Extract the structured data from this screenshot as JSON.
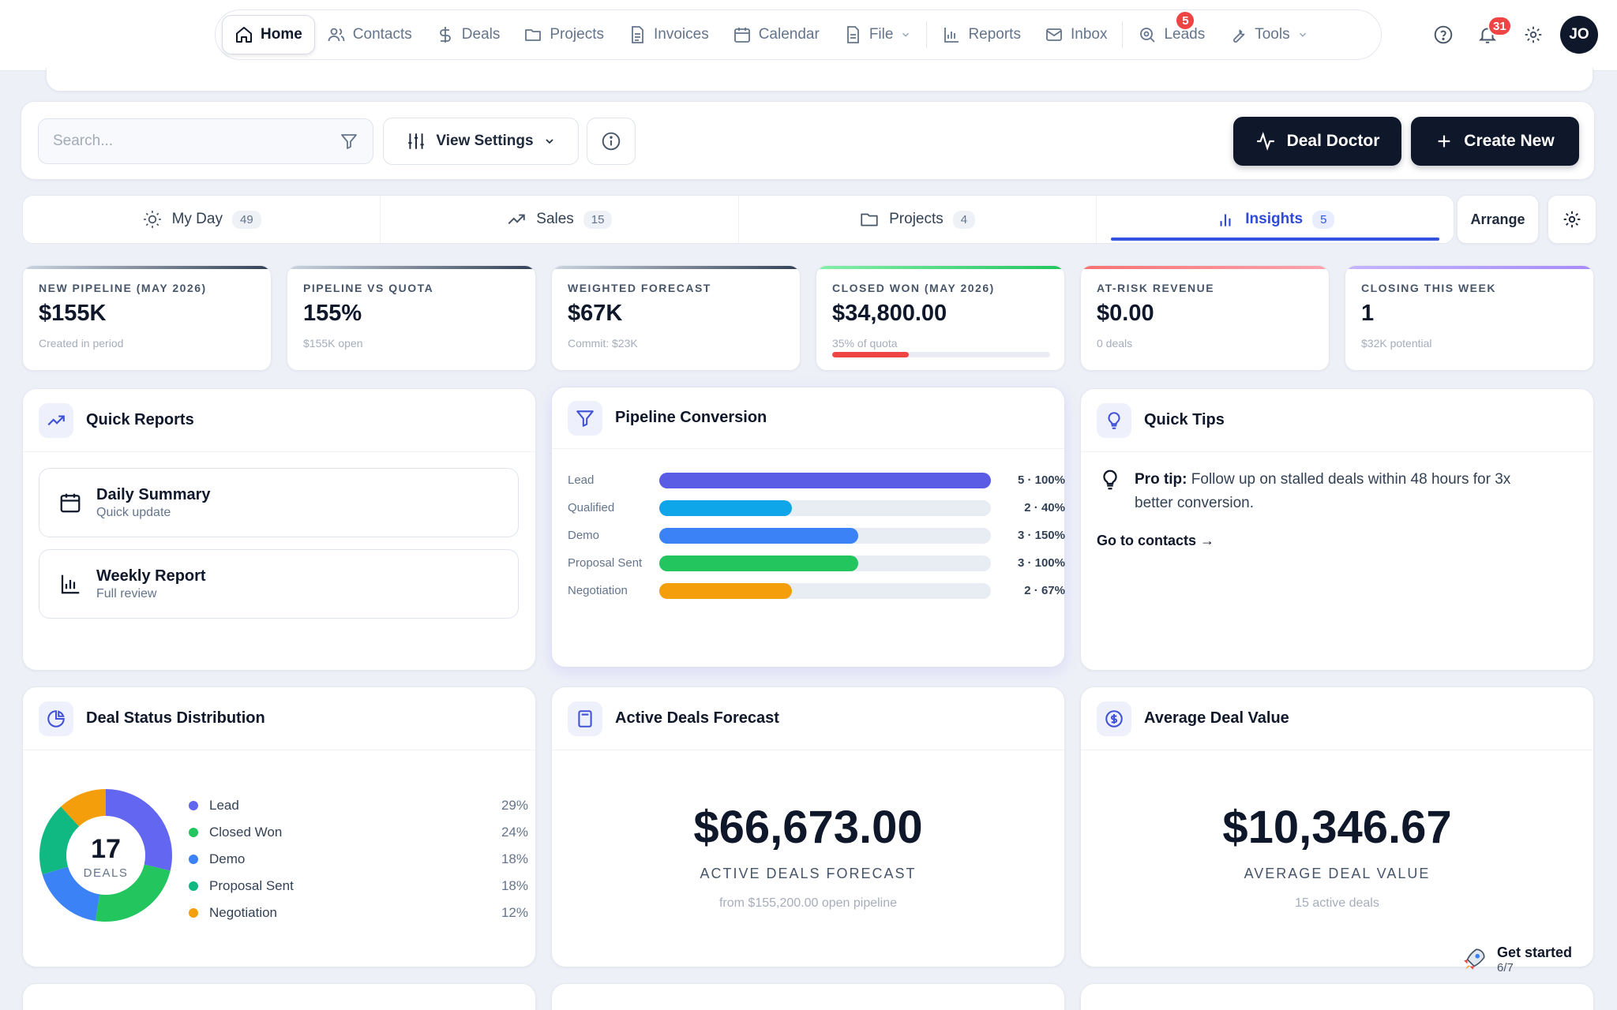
{
  "nav": {
    "items": [
      {
        "label": "Home",
        "icon": "home-icon"
      },
      {
        "label": "Contacts",
        "icon": "users-icon"
      },
      {
        "label": "Deals",
        "icon": "dollar-icon"
      },
      {
        "label": "Projects",
        "icon": "folder-icon"
      },
      {
        "label": "Invoices",
        "icon": "document-icon"
      },
      {
        "label": "Calendar",
        "icon": "calendar-icon"
      },
      {
        "label": "File",
        "icon": "file-icon"
      },
      {
        "label": "Reports",
        "icon": "bar-chart-icon"
      },
      {
        "label": "Inbox",
        "icon": "mail-icon"
      },
      {
        "label": "Leads",
        "icon": "search-target-icon",
        "badge": "5"
      },
      {
        "label": "Tools",
        "icon": "wrench-icon"
      }
    ],
    "notifications_badge": "31",
    "avatar_initials": "JO"
  },
  "toolbar": {
    "search_placeholder": "Search...",
    "view_settings_label": "View Settings",
    "deal_doctor_label": "Deal Doctor",
    "create_new_label": "Create New"
  },
  "tabs": [
    {
      "label": "My Day",
      "count": "49"
    },
    {
      "label": "Sales",
      "count": "15"
    },
    {
      "label": "Projects",
      "count": "4"
    },
    {
      "label": "Insights",
      "count": "5",
      "active": true
    }
  ],
  "arrange_label": "Arrange",
  "kpis": [
    {
      "label": "NEW PIPELINE (MAY 2026)",
      "value": "$155K",
      "sub": "Created in period",
      "accent": "#334155"
    },
    {
      "label": "PIPELINE VS QUOTA",
      "value": "155%",
      "sub": "$155K open",
      "accent": "#334155"
    },
    {
      "label": "WEIGHTED FORECAST",
      "value": "$67K",
      "sub": "Commit: $23K",
      "accent": "#334155"
    },
    {
      "label": "CLOSED WON (MAY 2026)",
      "value": "$34,800.00",
      "sub": "35% of quota",
      "accent": "#22c55e",
      "progress": 0.35
    },
    {
      "label": "AT-RISK REVENUE",
      "value": "$0.00",
      "sub": "0 deals",
      "accent": "#f87171"
    },
    {
      "label": "CLOSING THIS WEEK",
      "value": "1",
      "sub": "$32K potential",
      "accent": "#a78bfa"
    }
  ],
  "quick_reports": {
    "title": "Quick Reports",
    "items": [
      {
        "title": "Daily Summary",
        "sub": "Quick update"
      },
      {
        "title": "Weekly Report",
        "sub": "Full review"
      }
    ]
  },
  "pipeline": {
    "title": "Pipeline Conversion",
    "stages": [
      {
        "name": "Lead",
        "label": "5 · 100%",
        "fill": 1.0,
        "color": "#5b5ce6"
      },
      {
        "name": "Qualified",
        "label": "2 · 40%",
        "fill": 0.4,
        "color": "#0ea5e9"
      },
      {
        "name": "Demo",
        "label": "3 · 150%",
        "fill": 0.6,
        "color": "#3b82f6"
      },
      {
        "name": "Proposal Sent",
        "label": "3 · 100%",
        "fill": 0.6,
        "color": "#22c55e"
      },
      {
        "name": "Negotiation",
        "label": "2 · 67%",
        "fill": 0.4,
        "color": "#f59e0b"
      }
    ]
  },
  "quick_tips": {
    "title": "Quick Tips",
    "pro_label": "Pro tip:",
    "tip_line1": "Follow up on stalled deals within 48 hours for 3x",
    "tip_line2": "better conversion.",
    "link": "Go to contacts →"
  },
  "deal_status": {
    "title": "Deal Status Distribution",
    "total": "17",
    "total_label": "DEALS",
    "segments": [
      {
        "name": "Lead",
        "pct": "29%",
        "value": 29,
        "color": "#6366f1"
      },
      {
        "name": "Closed Won",
        "pct": "24%",
        "value": 24,
        "color": "#22c55e"
      },
      {
        "name": "Demo",
        "pct": "18%",
        "value": 18,
        "color": "#3b82f6"
      },
      {
        "name": "Proposal Sent",
        "pct": "18%",
        "value": 18,
        "color": "#10b981"
      },
      {
        "name": "Negotiation",
        "pct": "12%",
        "value": 12,
        "color": "#f59e0b"
      }
    ]
  },
  "active_forecast": {
    "title": "Active Deals Forecast",
    "value": "$66,673.00",
    "caption": "ACTIVE DEALS FORECAST",
    "sub": "from $155,200.00 open pipeline"
  },
  "avg_deal": {
    "title": "Average Deal Value",
    "value": "$10,346.67",
    "caption": "AVERAGE DEAL VALUE",
    "sub": "15 active deals"
  },
  "get_started": {
    "label": "Get started",
    "progress": "6/7"
  }
}
